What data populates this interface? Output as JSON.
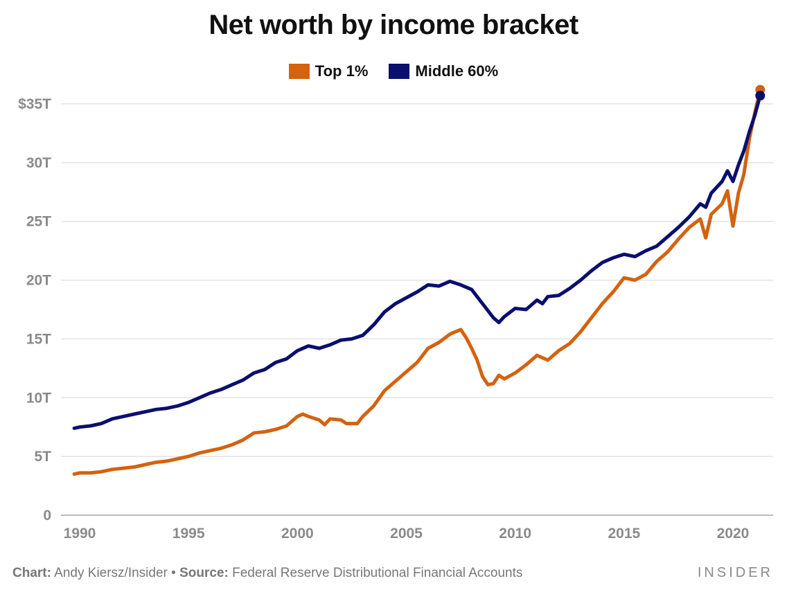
{
  "chart_data": {
    "type": "line",
    "title": "Net worth by income bracket",
    "xlabel": "",
    "ylabel": "",
    "xlim": [
      1989.5,
      2021.5
    ],
    "ylim": [
      0,
      37
    ],
    "x_ticks": [
      1990,
      1995,
      2000,
      2005,
      2010,
      2015,
      2020
    ],
    "x_tick_labels": [
      "1990",
      "1995",
      "2000",
      "2005",
      "2010",
      "2015",
      "2020"
    ],
    "y_ticks": [
      0,
      5,
      10,
      15,
      20,
      25,
      30,
      35
    ],
    "y_tick_labels": [
      "0",
      "5T",
      "10T",
      "15T",
      "20T",
      "25T",
      "30T",
      "$35T"
    ],
    "grid": true,
    "legend_position": "top-center",
    "series": [
      {
        "name": "Top 1%",
        "color": "#d4620f",
        "points": [
          [
            1989.75,
            3.5
          ],
          [
            1990.0,
            3.6
          ],
          [
            1990.5,
            3.6
          ],
          [
            1991.0,
            3.7
          ],
          [
            1991.5,
            3.9
          ],
          [
            1992.0,
            4.0
          ],
          [
            1992.5,
            4.1
          ],
          [
            1993.0,
            4.3
          ],
          [
            1993.5,
            4.5
          ],
          [
            1994.0,
            4.6
          ],
          [
            1994.5,
            4.8
          ],
          [
            1995.0,
            5.0
          ],
          [
            1995.5,
            5.3
          ],
          [
            1996.0,
            5.5
          ],
          [
            1996.5,
            5.7
          ],
          [
            1997.0,
            6.0
          ],
          [
            1997.5,
            6.4
          ],
          [
            1998.0,
            7.0
          ],
          [
            1998.5,
            7.1
          ],
          [
            1999.0,
            7.3
          ],
          [
            1999.5,
            7.6
          ],
          [
            2000.0,
            8.4
          ],
          [
            2000.25,
            8.6
          ],
          [
            2000.5,
            8.4
          ],
          [
            2001.0,
            8.1
          ],
          [
            2001.25,
            7.7
          ],
          [
            2001.5,
            8.2
          ],
          [
            2002.0,
            8.1
          ],
          [
            2002.25,
            7.8
          ],
          [
            2002.75,
            7.8
          ],
          [
            2003.0,
            8.4
          ],
          [
            2003.5,
            9.3
          ],
          [
            2004.0,
            10.6
          ],
          [
            2004.5,
            11.4
          ],
          [
            2005.0,
            12.2
          ],
          [
            2005.5,
            13.0
          ],
          [
            2006.0,
            14.2
          ],
          [
            2006.5,
            14.7
          ],
          [
            2007.0,
            15.4
          ],
          [
            2007.25,
            15.6
          ],
          [
            2007.5,
            15.8
          ],
          [
            2007.75,
            15.1
          ],
          [
            2008.0,
            14.2
          ],
          [
            2008.25,
            13.2
          ],
          [
            2008.5,
            11.8
          ],
          [
            2008.75,
            11.1
          ],
          [
            2009.0,
            11.2
          ],
          [
            2009.25,
            11.9
          ],
          [
            2009.5,
            11.6
          ],
          [
            2010.0,
            12.1
          ],
          [
            2010.5,
            12.8
          ],
          [
            2011.0,
            13.6
          ],
          [
            2011.5,
            13.2
          ],
          [
            2012.0,
            14.0
          ],
          [
            2012.5,
            14.6
          ],
          [
            2013.0,
            15.6
          ],
          [
            2013.5,
            16.8
          ],
          [
            2014.0,
            18.0
          ],
          [
            2014.5,
            19.0
          ],
          [
            2015.0,
            20.2
          ],
          [
            2015.5,
            20.0
          ],
          [
            2016.0,
            20.5
          ],
          [
            2016.5,
            21.6
          ],
          [
            2017.0,
            22.4
          ],
          [
            2017.5,
            23.5
          ],
          [
            2018.0,
            24.5
          ],
          [
            2018.5,
            25.2
          ],
          [
            2018.75,
            23.6
          ],
          [
            2019.0,
            25.6
          ],
          [
            2019.5,
            26.5
          ],
          [
            2019.75,
            27.6
          ],
          [
            2020.0,
            24.6
          ],
          [
            2020.25,
            27.4
          ],
          [
            2020.5,
            29.0
          ],
          [
            2020.75,
            32.0
          ],
          [
            2021.0,
            34.2
          ],
          [
            2021.25,
            36.2
          ]
        ]
      },
      {
        "name": "Middle 60%",
        "color": "#0a0f6e",
        "points": [
          [
            1989.75,
            7.4
          ],
          [
            1990.0,
            7.5
          ],
          [
            1990.5,
            7.6
          ],
          [
            1991.0,
            7.8
          ],
          [
            1991.5,
            8.2
          ],
          [
            1992.0,
            8.4
          ],
          [
            1992.5,
            8.6
          ],
          [
            1993.0,
            8.8
          ],
          [
            1993.5,
            9.0
          ],
          [
            1994.0,
            9.1
          ],
          [
            1994.5,
            9.3
          ],
          [
            1995.0,
            9.6
          ],
          [
            1995.5,
            10.0
          ],
          [
            1996.0,
            10.4
          ],
          [
            1996.5,
            10.7
          ],
          [
            1997.0,
            11.1
          ],
          [
            1997.5,
            11.5
          ],
          [
            1998.0,
            12.1
          ],
          [
            1998.5,
            12.4
          ],
          [
            1999.0,
            13.0
          ],
          [
            1999.5,
            13.3
          ],
          [
            2000.0,
            14.0
          ],
          [
            2000.5,
            14.4
          ],
          [
            2001.0,
            14.2
          ],
          [
            2001.5,
            14.5
          ],
          [
            2002.0,
            14.9
          ],
          [
            2002.5,
            15.0
          ],
          [
            2003.0,
            15.3
          ],
          [
            2003.5,
            16.2
          ],
          [
            2004.0,
            17.3
          ],
          [
            2004.5,
            18.0
          ],
          [
            2005.0,
            18.5
          ],
          [
            2005.5,
            19.0
          ],
          [
            2006.0,
            19.6
          ],
          [
            2006.5,
            19.5
          ],
          [
            2007.0,
            19.9
          ],
          [
            2007.5,
            19.6
          ],
          [
            2008.0,
            19.2
          ],
          [
            2008.5,
            18.0
          ],
          [
            2009.0,
            16.8
          ],
          [
            2009.25,
            16.4
          ],
          [
            2009.5,
            16.9
          ],
          [
            2010.0,
            17.6
          ],
          [
            2010.5,
            17.5
          ],
          [
            2011.0,
            18.3
          ],
          [
            2011.25,
            18.0
          ],
          [
            2011.5,
            18.6
          ],
          [
            2012.0,
            18.7
          ],
          [
            2012.5,
            19.3
          ],
          [
            2013.0,
            20.0
          ],
          [
            2013.5,
            20.8
          ],
          [
            2014.0,
            21.5
          ],
          [
            2014.5,
            21.9
          ],
          [
            2015.0,
            22.2
          ],
          [
            2015.5,
            22.0
          ],
          [
            2016.0,
            22.5
          ],
          [
            2016.5,
            22.9
          ],
          [
            2017.0,
            23.7
          ],
          [
            2017.5,
            24.5
          ],
          [
            2018.0,
            25.4
          ],
          [
            2018.5,
            26.5
          ],
          [
            2018.75,
            26.2
          ],
          [
            2019.0,
            27.4
          ],
          [
            2019.5,
            28.4
          ],
          [
            2019.75,
            29.3
          ],
          [
            2020.0,
            28.4
          ],
          [
            2020.25,
            29.8
          ],
          [
            2020.5,
            31.0
          ],
          [
            2020.75,
            32.6
          ],
          [
            2021.0,
            34.0
          ],
          [
            2021.25,
            35.7
          ]
        ]
      }
    ]
  },
  "footer": {
    "chart_label": "Chart:",
    "chart_text": " Andy Kiersz/Insider • ",
    "source_label": "Source:",
    "source_text": " Federal Reserve Distributional Financial Accounts"
  },
  "brand": "INSIDER"
}
